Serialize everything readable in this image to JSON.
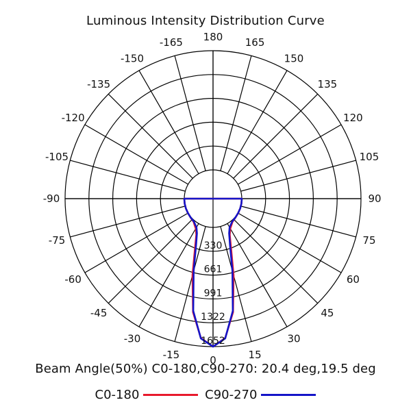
{
  "chart_data": {
    "type": "polar",
    "title": "Luminous Intensity Distribution Curve",
    "angle_labels": [
      "180",
      "165",
      "150",
      "135",
      "120",
      "105",
      "90",
      "75",
      "60",
      "45",
      "30",
      "15",
      "0",
      "-15",
      "-30",
      "-45",
      "-60",
      "-75",
      "-90",
      "-105",
      "-120",
      "-135",
      "-150",
      "-165"
    ],
    "radial_tick_labels": [
      "330",
      "661",
      "991",
      "1322",
      "1652"
    ],
    "radial_max": 1652,
    "grid": true,
    "series": [
      {
        "name": "C0-180",
        "color": "#e8192c",
        "angles": [
          0,
          5,
          10,
          15,
          20,
          25,
          30,
          40,
          50,
          60,
          70,
          80,
          90
        ],
        "values": [
          1652,
          1540,
          1200,
          700,
          330,
          150,
          80,
          20,
          8,
          3,
          1,
          0,
          0
        ]
      },
      {
        "name": "C90-270",
        "color": "#1414c8",
        "angles": [
          0,
          5,
          10,
          15,
          20,
          25,
          30,
          40,
          50,
          60,
          70,
          80,
          90
        ],
        "values": [
          1652,
          1545,
          1180,
          640,
          290,
          130,
          60,
          15,
          6,
          2,
          1,
          0,
          0
        ]
      }
    ],
    "beam_angle_text": "Beam Angle(50%) C0-180,C90-270: 20.4 deg,19.5 deg"
  }
}
